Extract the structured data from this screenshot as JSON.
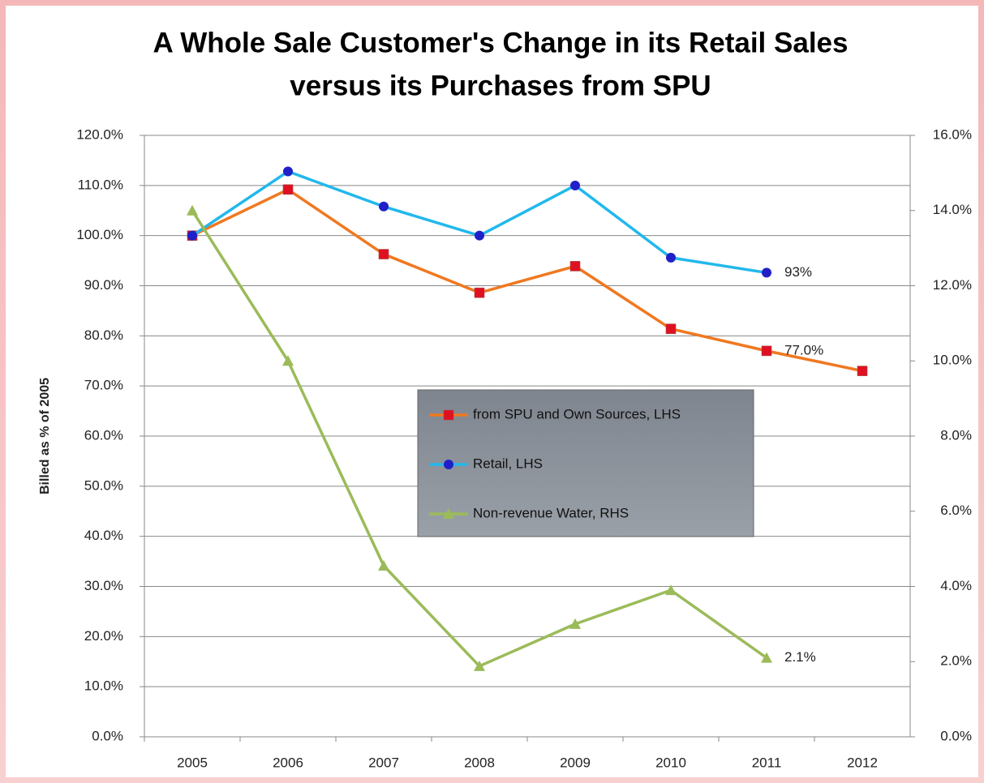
{
  "chart_data": {
    "type": "line",
    "title": [
      "A Whole Sale Customer's Change in its Retail Sales",
      "versus its Purchases from SPU"
    ],
    "ylabel": "Billed as % of 2005",
    "categories": [
      "2005",
      "2006",
      "2007",
      "2008",
      "2009",
      "2010",
      "2011",
      "2012"
    ],
    "series": [
      {
        "name": "from SPU and Own Sources, LHS",
        "color": "#f07820",
        "marker": "square",
        "marker_color": "#e01020",
        "values": [
          100,
          109.2,
          96.3,
          88.6,
          93.9,
          81.4,
          77.0,
          73.0
        ],
        "value_labels": [
          null,
          null,
          null,
          null,
          null,
          null,
          "77.0%",
          null
        ]
      },
      {
        "name": "Retail, LHS",
        "color": "#22b8ec",
        "marker": "circle",
        "marker_color": "#2020c8",
        "values": [
          100,
          112.8,
          105.8,
          100,
          110,
          95.6,
          92.6,
          null
        ],
        "value_labels": [
          null,
          null,
          null,
          null,
          null,
          null,
          "93%",
          null
        ]
      },
      {
        "name": "Non-revenue Water, RHS",
        "color": "#9bbb59",
        "marker": "triangle",
        "marker_color": "#9bbb59",
        "axis": "y2",
        "values": [
          14.0,
          10.0,
          4.55,
          1.88,
          3.0,
          3.9,
          2.1,
          null
        ],
        "value_labels": [
          null,
          null,
          null,
          null,
          null,
          null,
          "2.1%",
          null
        ]
      }
    ],
    "ylim": [
      0,
      120
    ],
    "yticks": [
      {
        "value": 0,
        "label": "0.0%"
      },
      {
        "value": 10,
        "label": "10.0%"
      },
      {
        "value": 20,
        "label": "20.0%"
      },
      {
        "value": 30,
        "label": "30.0%"
      },
      {
        "value": 40,
        "label": "40.0%"
      },
      {
        "value": 50,
        "label": "50.0%"
      },
      {
        "value": 60,
        "label": "60.0%"
      },
      {
        "value": 70,
        "label": "70.0%"
      },
      {
        "value": 80,
        "label": "80.0%"
      },
      {
        "value": 90,
        "label": "90.0%"
      },
      {
        "value": 100,
        "label": "100.0%"
      },
      {
        "value": 110,
        "label": "110.0%"
      },
      {
        "value": 120,
        "label": "120.0%"
      }
    ],
    "y2lim": [
      0,
      16
    ],
    "y2ticks": [
      {
        "value": 0,
        "label": "0.0%"
      },
      {
        "value": 2,
        "label": "2.0%"
      },
      {
        "value": 4,
        "label": "4.0%"
      },
      {
        "value": 6,
        "label": "6.0%"
      },
      {
        "value": 8,
        "label": "8.0%"
      },
      {
        "value": 10,
        "label": "10.0%"
      },
      {
        "value": 12,
        "label": "12.0%"
      },
      {
        "value": 14,
        "label": "14.0%"
      },
      {
        "value": 16,
        "label": "16.0%"
      }
    ],
    "grid": true,
    "legend": "center"
  }
}
